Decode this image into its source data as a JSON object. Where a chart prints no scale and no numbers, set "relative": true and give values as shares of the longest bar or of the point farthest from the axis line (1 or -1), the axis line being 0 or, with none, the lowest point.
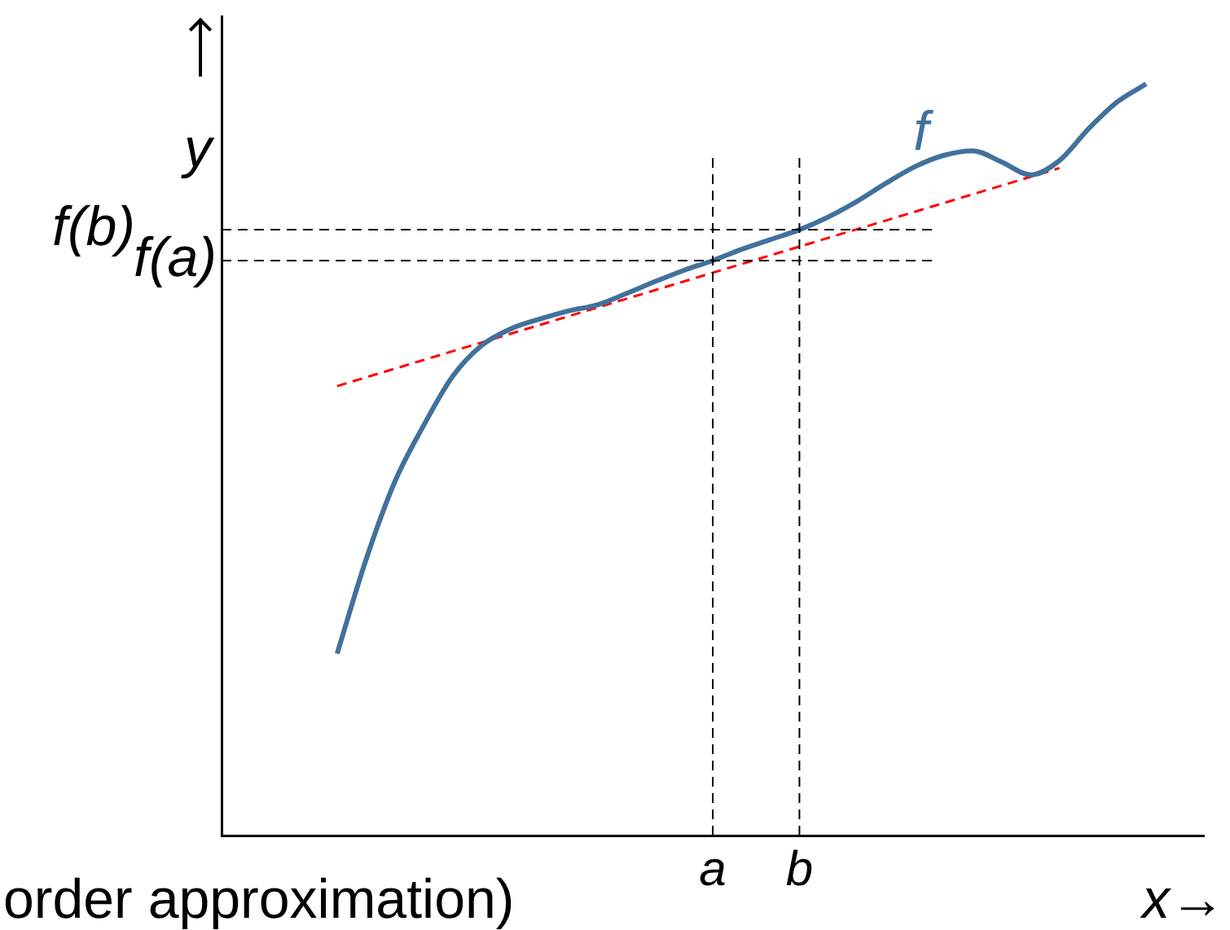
{
  "chart_data": {
    "type": "line",
    "relative": true,
    "xlabel": "x→",
    "ylabel": "y",
    "legend": false,
    "grid": false,
    "categories": [
      null,
      null,
      null,
      null,
      null,
      null,
      null,
      null,
      null,
      null,
      null,
      null,
      null,
      null,
      null,
      null,
      null,
      "a",
      null,
      null,
      "b",
      null,
      null,
      null,
      null,
      null,
      null,
      null,
      null,
      null,
      null,
      null,
      null,
      null,
      null
    ],
    "series": [
      {
        "name": "f",
        "color": "#41719c",
        "values": [
          null,
          null,
          null,
          null,
          0.242,
          0.367,
          0.471,
          0.546,
          0.611,
          0.652,
          0.674,
          0.687,
          0.698,
          0.706,
          0.721,
          0.737,
          0.752,
          0.765,
          0.78,
          0.793,
          0.806,
          0.823,
          0.844,
          0.868,
          0.89,
          0.905,
          0.911,
          0.896,
          0.879,
          0.898,
          0.94,
          0.976,
          1,
          null,
          null
        ]
      },
      {
        "color": "#ff0000",
        "line_style": "dashed",
        "values": [
          null,
          null,
          null,
          null,
          0.598,
          null,
          null,
          null,
          null,
          null,
          null,
          null,
          null,
          null,
          null,
          null,
          null,
          null,
          null,
          null,
          null,
          null,
          null,
          null,
          null,
          null,
          null,
          null,
          null,
          0.888,
          null,
          null,
          null,
          null,
          null
        ]
      }
    ],
    "ref_lines": [
      {
        "axis": "y",
        "value": 0.806,
        "label": "f(b)",
        "color": "#000000",
        "line_style": "dashed"
      },
      {
        "axis": "y",
        "value": 0.765,
        "label": "f(a)",
        "color": "#000000",
        "line_style": "dashed"
      },
      {
        "axis": "x",
        "value": "a",
        "color": "#000000",
        "line_style": "dashed"
      },
      {
        "axis": "x",
        "value": "b",
        "color": "#000000",
        "line_style": "dashed"
      }
    ],
    "annotations": [
      "order approximation)"
    ]
  }
}
